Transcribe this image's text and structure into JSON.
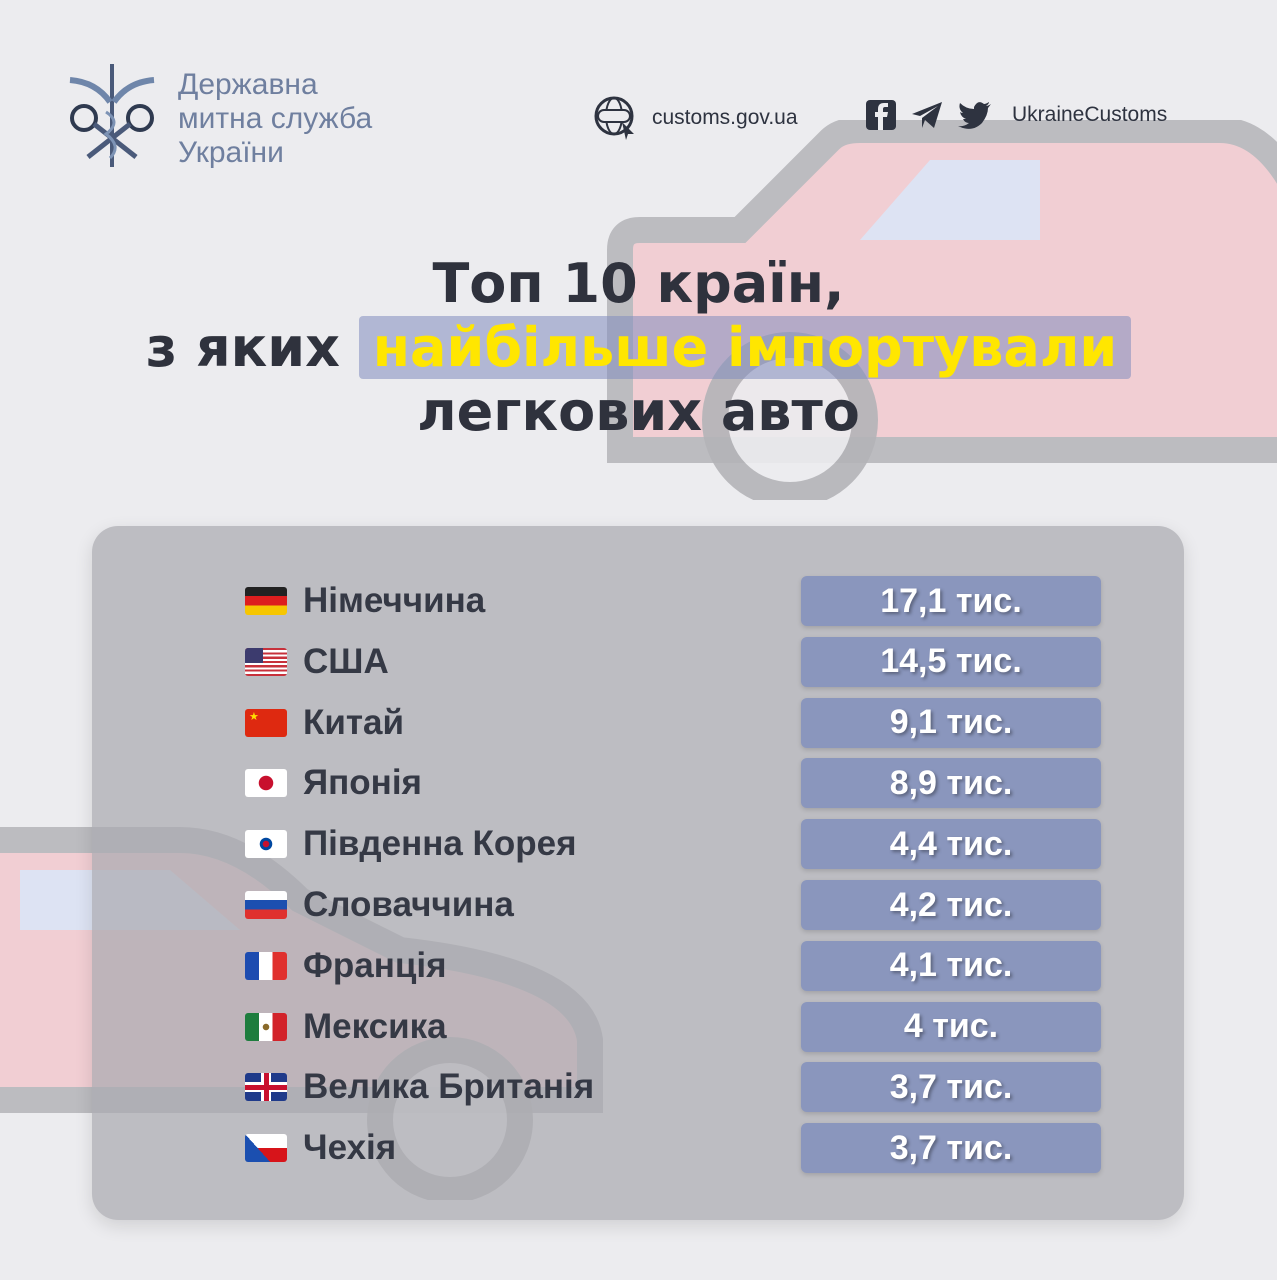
{
  "header": {
    "org_line1": "Державна",
    "org_line2": "митна служба",
    "org_line3": "України",
    "website": "customs.gov.ua",
    "social_handle": "UkraineCustoms",
    "social_icons": [
      "facebook-icon",
      "telegram-icon",
      "twitter-icon"
    ]
  },
  "title": {
    "line1": "Топ 10 країн,",
    "line2_prefix": "з яких ",
    "line2_highlight": "найбільше імпортували",
    "line3": "легкових авто"
  },
  "colors": {
    "highlight_text": "#ffe600",
    "pill": "#8a96bd",
    "text": "#353945",
    "org": "#6f7f9f"
  },
  "rows": [
    {
      "country": "Німеччина",
      "value": "17,1 тис.",
      "flag": "de"
    },
    {
      "country": "США",
      "value": "14,5 тис.",
      "flag": "us"
    },
    {
      "country": "Китай",
      "value": "9,1 тис.",
      "flag": "cn"
    },
    {
      "country": "Японія",
      "value": "8,9 тис.",
      "flag": "jp"
    },
    {
      "country": "Південна Корея",
      "value": "4,4 тис.",
      "flag": "kr"
    },
    {
      "country": "Словаччина",
      "value": "4,2 тис.",
      "flag": "sk"
    },
    {
      "country": "Франція",
      "value": "4,1 тис.",
      "flag": "fr"
    },
    {
      "country": "Мексика",
      "value": "4 тис.",
      "flag": "mx"
    },
    {
      "country": "Велика Британія",
      "value": "3,7 тис.",
      "flag": "gb"
    },
    {
      "country": "Чехія",
      "value": "3,7 тис.",
      "flag": "cz"
    }
  ]
}
